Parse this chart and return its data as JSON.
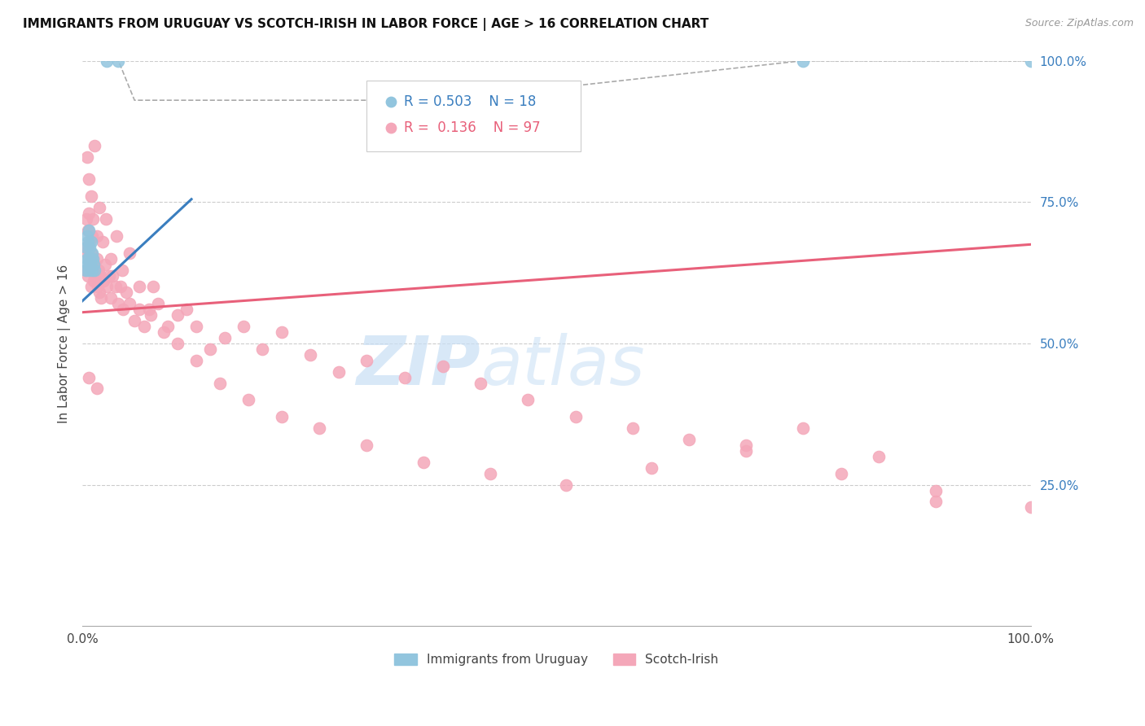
{
  "title": "IMMIGRANTS FROM URUGUAY VS SCOTCH-IRISH IN LABOR FORCE | AGE > 16 CORRELATION CHART",
  "source": "Source: ZipAtlas.com",
  "ylabel": "In Labor Force | Age > 16",
  "x_min": 0.0,
  "x_max": 1.0,
  "y_min": 0.0,
  "y_max": 1.0,
  "x_tick_labels": [
    "0.0%",
    "",
    "",
    "",
    "100.0%"
  ],
  "y_tick_labels_right": [
    "25.0%",
    "50.0%",
    "75.0%",
    "100.0%"
  ],
  "blue_color": "#92c5de",
  "pink_color": "#f4a7b9",
  "blue_line_color": "#3a7ebf",
  "pink_line_color": "#e8607a",
  "blue_line_x": [
    0.0,
    0.115
  ],
  "blue_line_y": [
    0.575,
    0.755
  ],
  "pink_line_x": [
    0.0,
    1.0
  ],
  "pink_line_y": [
    0.555,
    0.675
  ],
  "dashed_x": [
    0.026,
    0.038,
    0.055,
    0.38,
    0.76,
    1.0
  ],
  "dashed_y": [
    1.0,
    1.0,
    0.93,
    0.93,
    1.0,
    1.0
  ],
  "uruguay_x": [
    0.003,
    0.004,
    0.005,
    0.005,
    0.006,
    0.006,
    0.007,
    0.007,
    0.007,
    0.008,
    0.008,
    0.009,
    0.009,
    0.01,
    0.01,
    0.011,
    0.012,
    0.013,
    0.026,
    0.038,
    0.38,
    0.76,
    1.0
  ],
  "uruguay_y": [
    0.63,
    0.67,
    0.65,
    0.69,
    0.64,
    0.68,
    0.63,
    0.65,
    0.7,
    0.64,
    0.67,
    0.65,
    0.68,
    0.63,
    0.66,
    0.65,
    0.64,
    0.63,
    1.0,
    1.0,
    0.93,
    1.0,
    1.0
  ],
  "scotch_x": [
    0.003,
    0.004,
    0.004,
    0.005,
    0.006,
    0.006,
    0.007,
    0.007,
    0.008,
    0.008,
    0.009,
    0.009,
    0.01,
    0.01,
    0.011,
    0.012,
    0.013,
    0.014,
    0.015,
    0.016,
    0.017,
    0.018,
    0.019,
    0.02,
    0.022,
    0.024,
    0.026,
    0.028,
    0.03,
    0.032,
    0.035,
    0.038,
    0.04,
    0.043,
    0.046,
    0.05,
    0.055,
    0.06,
    0.065,
    0.07,
    0.075,
    0.08,
    0.09,
    0.1,
    0.11,
    0.12,
    0.135,
    0.15,
    0.17,
    0.19,
    0.21,
    0.24,
    0.27,
    0.3,
    0.34,
    0.38,
    0.42,
    0.47,
    0.52,
    0.58,
    0.64,
    0.7,
    0.76,
    0.84,
    0.9,
    1.0,
    0.005,
    0.007,
    0.009,
    0.011,
    0.013,
    0.015,
    0.018,
    0.021,
    0.025,
    0.03,
    0.036,
    0.042,
    0.05,
    0.06,
    0.072,
    0.086,
    0.1,
    0.12,
    0.145,
    0.175,
    0.21,
    0.25,
    0.3,
    0.36,
    0.43,
    0.51,
    0.6,
    0.7,
    0.8,
    0.9,
    0.007,
    0.015
  ],
  "scotch_y": [
    0.67,
    0.72,
    0.63,
    0.66,
    0.7,
    0.62,
    0.65,
    0.73,
    0.64,
    0.68,
    0.6,
    0.66,
    0.63,
    0.69,
    0.65,
    0.61,
    0.64,
    0.62,
    0.65,
    0.6,
    0.63,
    0.59,
    0.62,
    0.58,
    0.61,
    0.64,
    0.6,
    0.62,
    0.58,
    0.62,
    0.6,
    0.57,
    0.6,
    0.56,
    0.59,
    0.57,
    0.54,
    0.56,
    0.53,
    0.56,
    0.6,
    0.57,
    0.53,
    0.55,
    0.56,
    0.53,
    0.49,
    0.51,
    0.53,
    0.49,
    0.52,
    0.48,
    0.45,
    0.47,
    0.44,
    0.46,
    0.43,
    0.4,
    0.37,
    0.35,
    0.33,
    0.32,
    0.35,
    0.3,
    0.22,
    0.21,
    0.83,
    0.79,
    0.76,
    0.72,
    0.85,
    0.69,
    0.74,
    0.68,
    0.72,
    0.65,
    0.69,
    0.63,
    0.66,
    0.6,
    0.55,
    0.52,
    0.5,
    0.47,
    0.43,
    0.4,
    0.37,
    0.35,
    0.32,
    0.29,
    0.27,
    0.25,
    0.28,
    0.31,
    0.27,
    0.24,
    0.44,
    0.42
  ]
}
